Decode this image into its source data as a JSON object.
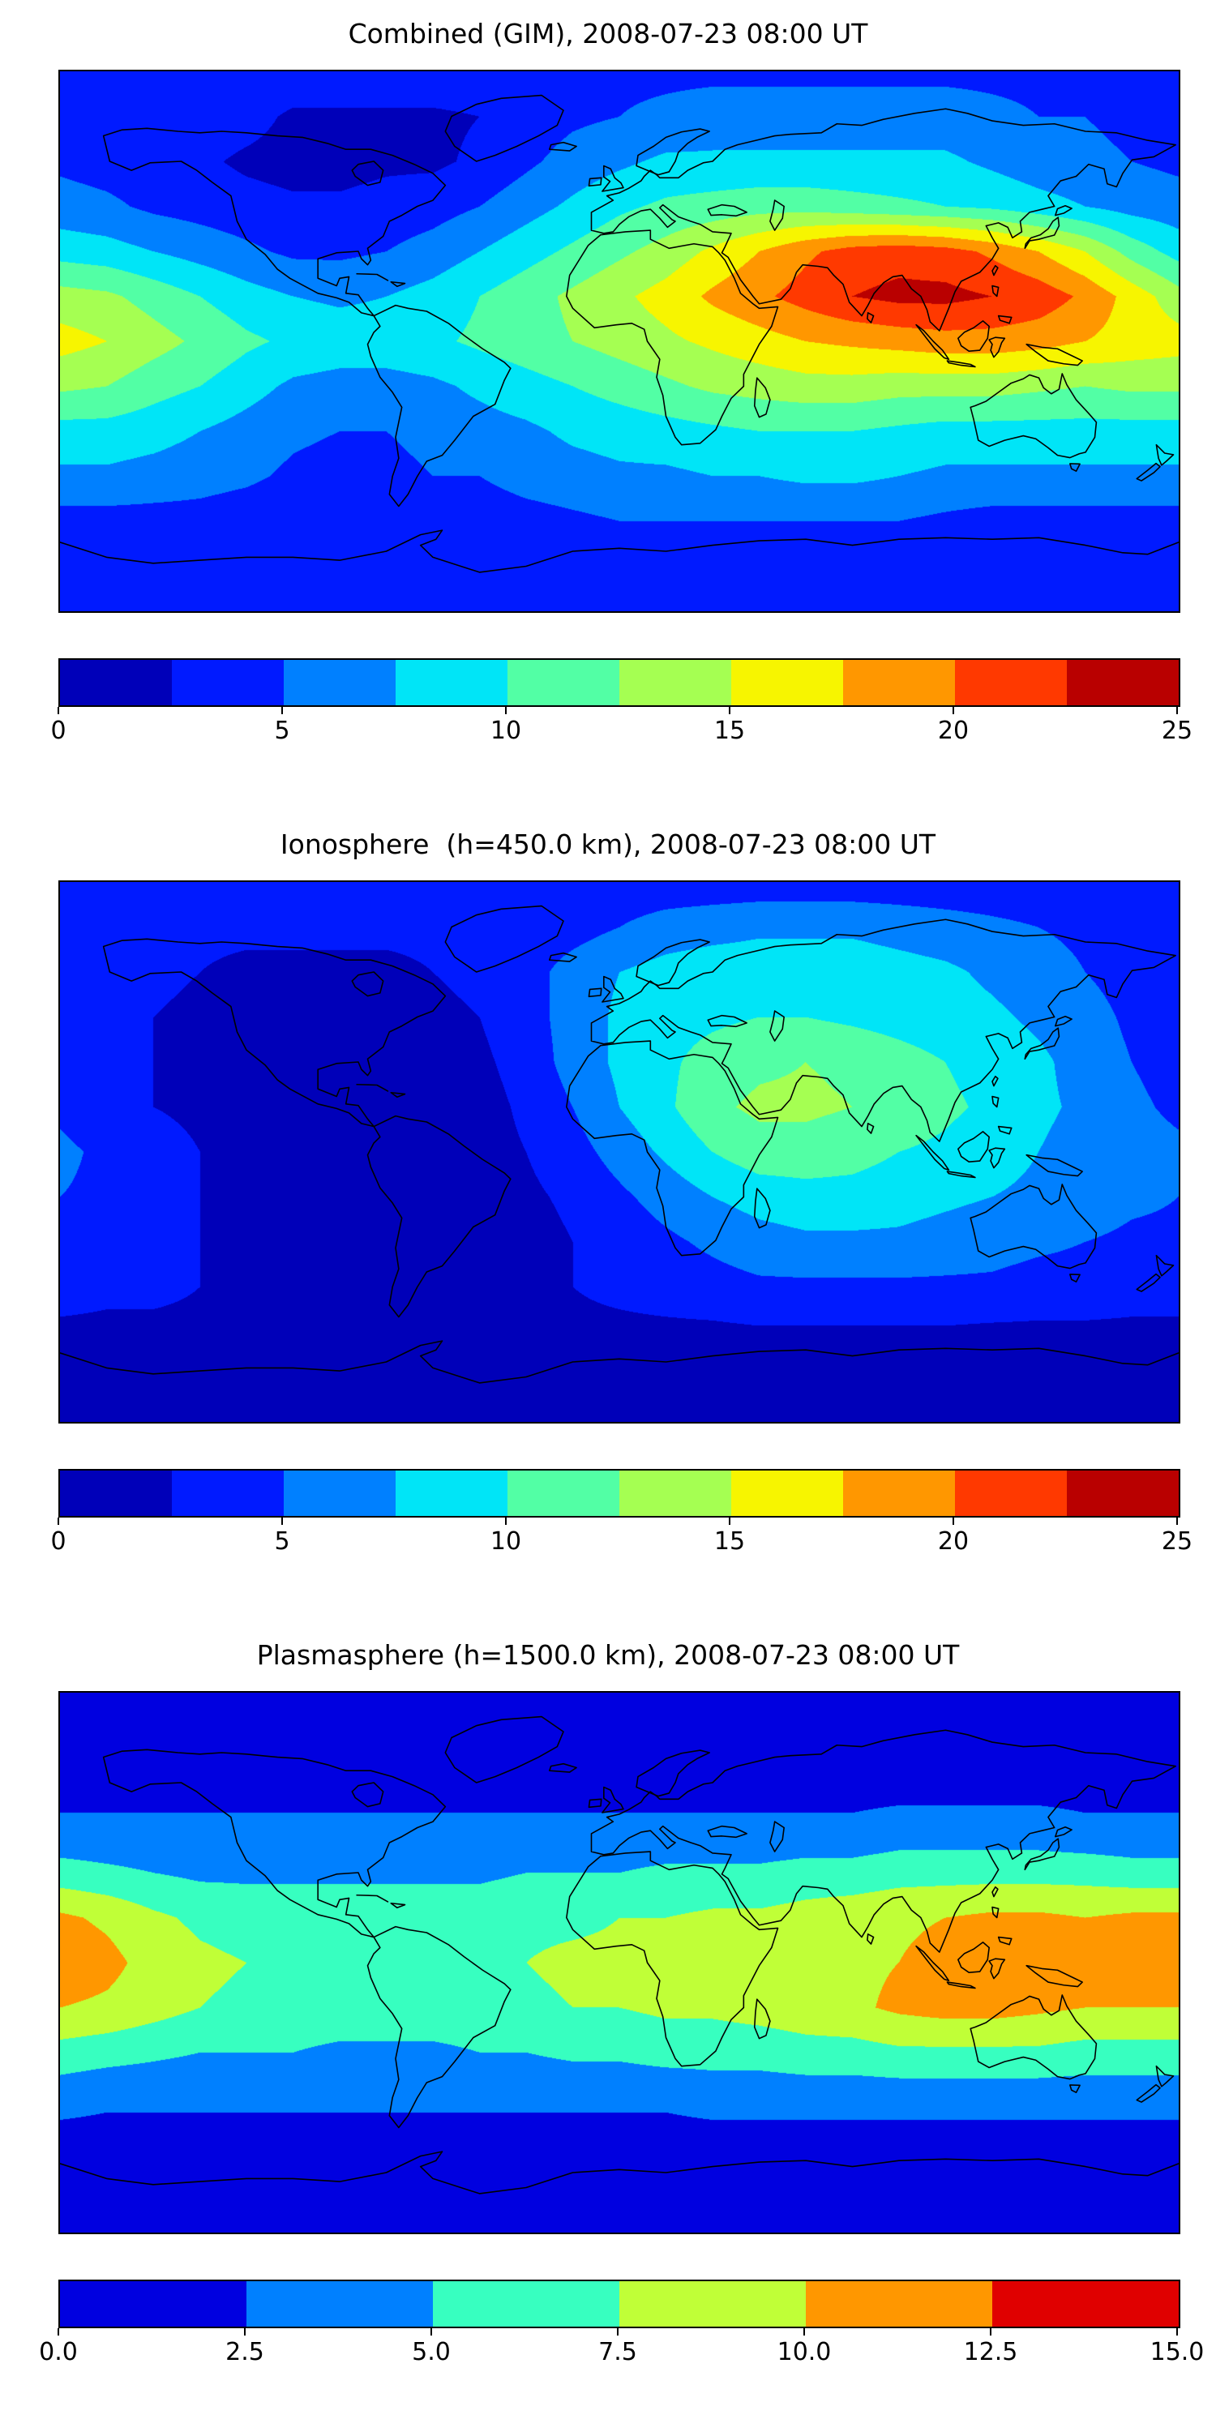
{
  "figure": {
    "background": "#ffffff",
    "coastline_color": "#000000"
  },
  "chart_data": [
    {
      "type": "heatmap",
      "subtype": "filled_contour_world_map",
      "title": "Combined (GIM), 2008-07-23 08:00 UT",
      "projection": "equirectangular",
      "lon_min": -180,
      "lon_max": 180,
      "lat_min": -90,
      "lat_max": 90,
      "grid_note": "rows from lat +90 to -90 step 15, cols from lon -180 to +180 step 15, values in TECU",
      "vmin": 0,
      "vmax": 25,
      "colorbar_ticks": [
        "0",
        "5",
        "10",
        "15",
        "20",
        "25"
      ],
      "palette": [
        "#0000b9",
        "#001aff",
        "#0080ff",
        "#00e5f7",
        "#52ffa5",
        "#a5ff52",
        "#f7f500",
        "#ff9700",
        "#ff3900",
        "#b90000"
      ],
      "values": [
        [
          4.5,
          4.5,
          4.5,
          4.5,
          4.5,
          4.5,
          4.5,
          4.5,
          4.5,
          4.5,
          4.5,
          4.5,
          4.5,
          4.5,
          4.5,
          4.5,
          4.5,
          4.5,
          4.5,
          4.5,
          4.5,
          4.5,
          4.5,
          4.5,
          4.5
        ],
        [
          4.5,
          4.5,
          4.5,
          4,
          3.5,
          2,
          2,
          2,
          2,
          2.5,
          3.5,
          4.5,
          5,
          5.5,
          6,
          6,
          6,
          6,
          6,
          6,
          5.5,
          5,
          5,
          4.5,
          4.5
        ],
        [
          4.5,
          4,
          3.5,
          3,
          2,
          1.5,
          1.5,
          2,
          2,
          3,
          4.5,
          6,
          7,
          8,
          8,
          8,
          8,
          8,
          8,
          8,
          7,
          6,
          5.5,
          5,
          4.5
        ],
        [
          6,
          5.5,
          4.5,
          4,
          3.5,
          3,
          3,
          3.5,
          4,
          5,
          6.5,
          8,
          9.5,
          10.5,
          11,
          11.5,
          11.5,
          11,
          10.5,
          10,
          9.5,
          8.5,
          7.5,
          6.5,
          6
        ],
        [
          9,
          8.5,
          7.5,
          6.5,
          5.5,
          4.5,
          4.5,
          5,
          6,
          7.5,
          9,
          10.5,
          12,
          13.5,
          15.5,
          17.5,
          19.5,
          21,
          21.5,
          21,
          19.5,
          17.5,
          15,
          11.5,
          9
        ],
        [
          13.5,
          13,
          11.5,
          10,
          8.5,
          7.5,
          7,
          7.5,
          8.5,
          10,
          11.5,
          13,
          14.5,
          16,
          18,
          19.5,
          21,
          22.5,
          23.2,
          23.2,
          22.5,
          21.5,
          19.5,
          16.5,
          13.5
        ],
        [
          16,
          15,
          13.5,
          12,
          10.5,
          9.5,
          9,
          9,
          9.5,
          10.5,
          11.5,
          12.5,
          13.5,
          14.5,
          15.5,
          16.5,
          17.5,
          18,
          18.5,
          19,
          19,
          18.5,
          17.5,
          16.5,
          16
        ],
        [
          13,
          12.5,
          11,
          10,
          8.5,
          7,
          6.5,
          6.5,
          7,
          8,
          9,
          10,
          11,
          12,
          13,
          13.5,
          14,
          14,
          13.5,
          13.5,
          13.5,
          13,
          12.5,
          13,
          13
        ],
        [
          9,
          9,
          8.5,
          7.5,
          6.5,
          5.5,
          5,
          5,
          6,
          6.5,
          7,
          8,
          8.5,
          9,
          9.5,
          10,
          10,
          10,
          9.5,
          9,
          9,
          9,
          9,
          9,
          9
        ],
        [
          7,
          7,
          6.5,
          6,
          5.5,
          4.5,
          4,
          4,
          5,
          5,
          6,
          6.5,
          7,
          7,
          7.5,
          7.5,
          8,
          8,
          7.5,
          7,
          7,
          7,
          7,
          7,
          7
        ],
        [
          4,
          4,
          4,
          4,
          3.5,
          3,
          3,
          3,
          3,
          3.5,
          4,
          4.5,
          5,
          5,
          5,
          5,
          5,
          5,
          5,
          4.5,
          4,
          4,
          4,
          4,
          4
        ],
        [
          3,
          3,
          3,
          3,
          3,
          3,
          3,
          3,
          3,
          3,
          3,
          3,
          3.5,
          3.5,
          3.5,
          3.5,
          3.5,
          3.5,
          3.5,
          3,
          3,
          3,
          3,
          3,
          3
        ],
        [
          3,
          3,
          3,
          3,
          3,
          3,
          3,
          3,
          3,
          3,
          3,
          3,
          3,
          3,
          3,
          3,
          3,
          3,
          3,
          3,
          3,
          3,
          3,
          3,
          3
        ]
      ]
    },
    {
      "type": "heatmap",
      "subtype": "filled_contour_world_map",
      "title": "Ionosphere  (h=450.0 km), 2008-07-23 08:00 UT",
      "projection": "equirectangular",
      "lon_min": -180,
      "lon_max": 180,
      "lat_min": -90,
      "lat_max": 90,
      "grid_note": "rows from lat +90 to -90 step 15, cols from lon -180 to +180 step 15, values in TECU",
      "vmin": 0,
      "vmax": 25,
      "colorbar_ticks": [
        "0",
        "5",
        "10",
        "15",
        "20",
        "25"
      ],
      "palette": [
        "#0000b9",
        "#001aff",
        "#0080ff",
        "#00e5f7",
        "#52ffa5",
        "#a5ff52",
        "#f7f500",
        "#ff9700",
        "#ff3900",
        "#b90000"
      ],
      "values": [
        [
          3.5,
          3.5,
          3.5,
          3.5,
          3.5,
          3.5,
          3.5,
          3.5,
          3.5,
          3.5,
          3.5,
          3.5,
          3.5,
          3.5,
          3.5,
          3.5,
          3.5,
          3.5,
          3.5,
          3.5,
          3.5,
          3.5,
          3.5,
          3.5,
          3.5
        ],
        [
          3.5,
          3.5,
          3,
          3,
          3,
          3,
          3,
          3,
          3,
          3,
          3.5,
          4,
          5,
          6,
          6.5,
          7,
          7,
          7,
          6.5,
          6,
          5.5,
          5,
          4.5,
          4,
          3.5
        ],
        [
          3.5,
          3,
          3,
          2.5,
          2,
          2,
          2,
          2,
          2.5,
          3,
          4,
          6,
          7.5,
          8.5,
          9,
          9,
          9,
          9,
          8.5,
          8,
          7,
          6,
          5,
          4,
          3.5
        ],
        [
          3.5,
          3,
          2.5,
          2,
          1.5,
          1.5,
          1.5,
          1.5,
          2,
          2.5,
          4,
          6,
          8,
          9,
          9.5,
          10,
          10,
          9.5,
          9,
          8.5,
          8,
          7,
          6,
          4.5,
          3.5
        ],
        [
          4,
          3,
          2.5,
          2,
          1.5,
          1,
          1,
          1,
          1.5,
          2,
          3.5,
          6,
          8,
          9.5,
          11,
          12,
          12.5,
          12,
          11,
          10,
          9,
          8,
          6.5,
          5,
          4
        ],
        [
          4.5,
          3.5,
          2.5,
          2,
          1.5,
          1,
          1,
          1,
          1,
          1.5,
          3,
          5,
          7.5,
          9.5,
          12,
          13,
          13,
          12.5,
          11.5,
          10.5,
          9.5,
          8,
          7,
          5.5,
          4.5
        ],
        [
          5.5,
          4.5,
          3.5,
          2.5,
          2,
          1.5,
          1,
          1,
          1,
          1.5,
          2.5,
          4,
          6,
          8,
          10,
          11.5,
          11.5,
          11,
          10,
          9.5,
          8.5,
          7.5,
          6.5,
          6,
          5.5
        ],
        [
          5,
          4.5,
          3.5,
          2.5,
          2,
          1.5,
          1,
          1,
          1,
          1,
          2,
          3,
          4.5,
          6,
          7.5,
          8.5,
          9,
          9,
          8.5,
          8,
          7.5,
          7,
          6.5,
          5.5,
          5
        ],
        [
          4.5,
          4,
          3.5,
          2.5,
          2,
          1.5,
          1,
          1,
          1,
          1,
          1.5,
          2.5,
          3.5,
          4.5,
          5.5,
          6.5,
          7,
          7,
          7,
          6.5,
          6,
          5.5,
          5,
          4.5,
          4.5
        ],
        [
          3.5,
          3,
          3,
          2.5,
          2,
          1.5,
          1.5,
          1.5,
          1.5,
          1.5,
          2,
          2.5,
          3,
          3.5,
          4,
          4.5,
          4.5,
          4.5,
          4.5,
          4.5,
          4.5,
          4,
          4,
          3.5,
          3.5
        ],
        [
          2,
          2,
          2,
          2,
          2,
          1.5,
          1.5,
          1.5,
          1.5,
          1.5,
          1.5,
          2,
          2,
          2,
          2,
          2.2,
          2.2,
          2.2,
          2.2,
          2.2,
          2,
          2,
          2,
          2,
          2
        ],
        [
          2,
          2,
          2,
          2,
          2,
          2,
          2,
          2,
          2,
          2,
          2,
          2,
          2,
          2,
          2,
          2,
          2,
          2,
          2,
          2,
          2,
          2,
          2,
          2,
          2
        ],
        [
          2,
          2,
          2,
          2,
          2,
          2,
          2,
          2,
          2,
          2,
          2,
          2,
          2,
          2,
          2,
          2,
          2,
          2,
          2,
          2,
          2,
          2,
          2,
          2,
          2
        ]
      ]
    },
    {
      "type": "heatmap",
      "subtype": "filled_contour_world_map",
      "title": "Plasmasphere (h=1500.0 km), 2008-07-23 08:00 UT",
      "projection": "equirectangular",
      "lon_min": -180,
      "lon_max": 180,
      "lat_min": -90,
      "lat_max": 90,
      "grid_note": "rows from lat +90 to -90 step 15, cols from lon -180 to +180 step 15, values in TECU",
      "vmin": 0,
      "vmax": 15,
      "colorbar_ticks": [
        "0.0",
        "2.5",
        "5.0",
        "7.5",
        "10.0",
        "12.5",
        "15.0"
      ],
      "palette": [
        "#0000e0",
        "#0080ff",
        "#37ffc0",
        "#c0ff37",
        "#ff9700",
        "#e00000"
      ],
      "values": [
        [
          1,
          1,
          1,
          1,
          1,
          1,
          1,
          1,
          1,
          1,
          1,
          1,
          1,
          1,
          1,
          1,
          1,
          1,
          1,
          1,
          1,
          1,
          1,
          1,
          1
        ],
        [
          1,
          1,
          1,
          1,
          1,
          1,
          1,
          1,
          1,
          1,
          1,
          1,
          1,
          1,
          1,
          1,
          1,
          1,
          1,
          1,
          1,
          1,
          1,
          1,
          1
        ],
        [
          1.5,
          1.5,
          1.5,
          1.5,
          1.5,
          1.5,
          1.5,
          1.5,
          1.5,
          1.5,
          1.5,
          1.5,
          1.5,
          1.5,
          1.5,
          1.5,
          1.5,
          1.5,
          1.5,
          1.5,
          1.5,
          1.5,
          1.5,
          1.5,
          1.5
        ],
        [
          3,
          3,
          3,
          3,
          3,
          3,
          3,
          3,
          3,
          3,
          3,
          3,
          3,
          3,
          3,
          3,
          3,
          3,
          3.5,
          3.5,
          3.5,
          3.5,
          3,
          3,
          3
        ],
        [
          6,
          5.5,
          5,
          4.5,
          4.5,
          4.5,
          4.5,
          4.5,
          4.5,
          4.5,
          5,
          5,
          5,
          5.5,
          5.5,
          5.5,
          6,
          6,
          6.5,
          6.5,
          6.5,
          6.5,
          6.5,
          6,
          6
        ],
        [
          10.5,
          9.5,
          8,
          7,
          6.5,
          6.5,
          6.5,
          6.5,
          6.5,
          6.5,
          7,
          7,
          7.5,
          7.5,
          8,
          8,
          8.5,
          9,
          9.5,
          10,
          10.5,
          10.5,
          10,
          10.5,
          10.5
        ],
        [
          11.8,
          10.8,
          9,
          8,
          7.5,
          7,
          7,
          7,
          7,
          7,
          7.5,
          8,
          8,
          8.5,
          8.5,
          9,
          9.5,
          9.5,
          10,
          11,
          11.8,
          11.8,
          11.8,
          11.8,
          11.8
        ],
        [
          10,
          9.5,
          8.5,
          7.5,
          7,
          6.5,
          6.5,
          6.5,
          6.5,
          6.5,
          7,
          7.5,
          7.5,
          8,
          8,
          8.5,
          9,
          9.5,
          10.5,
          11,
          11,
          10.5,
          10,
          10,
          10
        ],
        [
          6.5,
          6,
          5.5,
          5,
          5,
          5,
          4.5,
          4.5,
          4.5,
          5,
          5,
          5.5,
          5.5,
          6,
          6,
          6,
          6.5,
          6.5,
          7,
          7,
          7,
          7,
          6.5,
          6.5,
          6.5
        ],
        [
          3.5,
          3,
          3,
          3,
          3,
          3,
          3,
          3,
          3,
          3,
          3,
          3,
          3,
          3,
          3.5,
          3.5,
          3.5,
          3.5,
          3.5,
          3.5,
          3.5,
          3.5,
          3.5,
          3.5,
          3.5
        ],
        [
          1.5,
          1.5,
          1.5,
          1.5,
          1.5,
          1.5,
          1.5,
          1.5,
          1.5,
          1.5,
          1.5,
          1.5,
          1.5,
          1.5,
          1.5,
          1.5,
          1.5,
          1.5,
          1.5,
          1.5,
          1.5,
          1.5,
          1.5,
          1.5,
          1.5
        ],
        [
          1,
          1,
          1,
          1,
          1,
          1,
          1,
          1,
          1,
          1,
          1,
          1,
          1,
          1,
          1,
          1,
          1,
          1,
          1,
          1,
          1,
          1,
          1,
          1,
          1
        ],
        [
          1,
          1,
          1,
          1,
          1,
          1,
          1,
          1,
          1,
          1,
          1,
          1,
          1,
          1,
          1,
          1,
          1,
          1,
          1,
          1,
          1,
          1,
          1,
          1,
          1
        ]
      ]
    }
  ]
}
